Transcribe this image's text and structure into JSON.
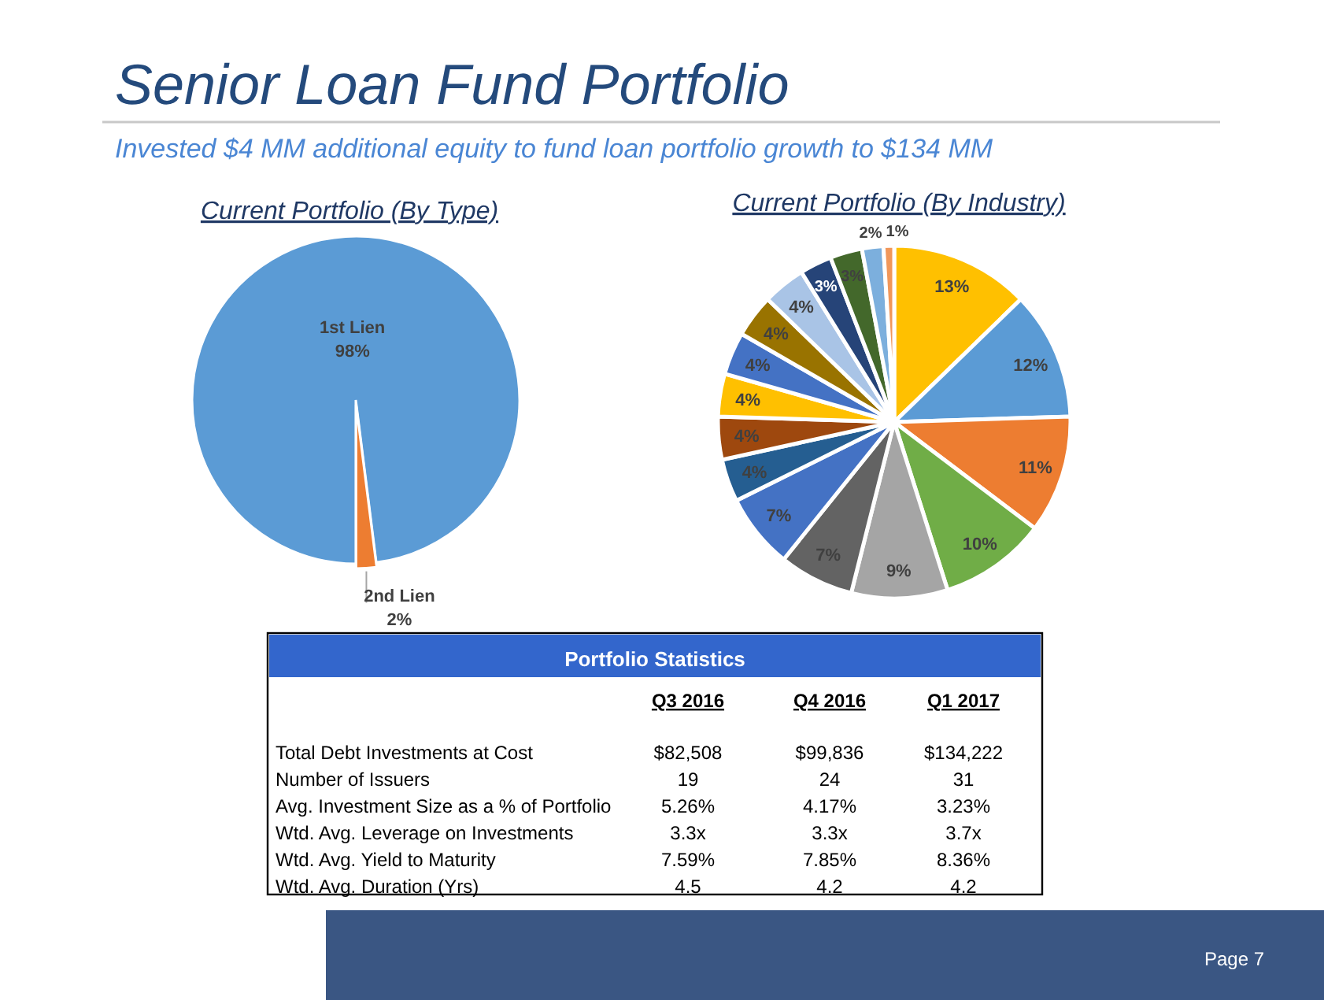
{
  "chart_data": [
    {
      "type": "other",
      "title": "Senior Loan Fund Portfolio",
      "subtitle": "Invested $4 MM additional equity to fund loan portfolio growth to $134 MM",
      "annotations": [
        "Page 7"
      ]
    },
    {
      "type": "pie",
      "title": "Current Portfolio (By Type)",
      "categories": [
        "1st Lien",
        "2nd Lien"
      ],
      "values": [
        98,
        2
      ],
      "colors": [
        "#5b9bd5",
        "#ed7d31"
      ],
      "value_labels": [
        "98%",
        "2%"
      ]
    },
    {
      "type": "pie",
      "title": "Current Portfolio (By Industry)",
      "categories": [
        null,
        null,
        null,
        null,
        null,
        null,
        null,
        null,
        null,
        null,
        null,
        null,
        null,
        null,
        null,
        null,
        null
      ],
      "values": [
        13,
        12,
        11,
        10,
        9,
        7,
        7,
        4,
        4,
        4,
        4,
        4,
        4,
        3,
        3,
        2,
        1
      ],
      "colors": [
        "#ffc000",
        "#5b9bd5",
        "#ed7d31",
        "#70ad47",
        "#a5a5a5",
        "#636363",
        "#4472c4",
        "#255e91",
        "#9e480e",
        "#ffc000",
        "#4472c4",
        "#997300",
        "#a9c4e6",
        "#264478",
        "#43682b",
        "#7cafdd",
        "#f1975a"
      ],
      "value_labels": [
        "13%",
        "12%",
        "11%",
        "10%",
        "9%",
        "7%",
        "7%",
        "4%",
        "4%",
        "4%",
        "4%",
        "4%",
        "4%",
        "3%",
        "3%",
        "2%",
        "1%"
      ]
    },
    {
      "type": "other",
      "title": "Portfolio Statistics",
      "annotations": [
        "Q3 2016",
        "Q4 2016",
        "Q1 2017",
        "Total Debt Investments at Cost",
        "$82,508",
        "$99,836",
        "$134,222",
        "Number of Issuers",
        "19",
        "24",
        "31",
        "Avg. Investment Size as a % of Portfolio",
        "5.26%",
        "4.17%",
        "3.23%",
        "Wtd. Avg. Leverage on Investments",
        "3.3x",
        "3.3x",
        "3.7x",
        "Wtd. Avg. Yield to Maturity",
        "7.59%",
        "7.85%",
        "8.36%",
        "Wtd. Avg. Duration (Yrs)",
        "4.5",
        "4.2",
        "4.2"
      ]
    }
  ]
}
